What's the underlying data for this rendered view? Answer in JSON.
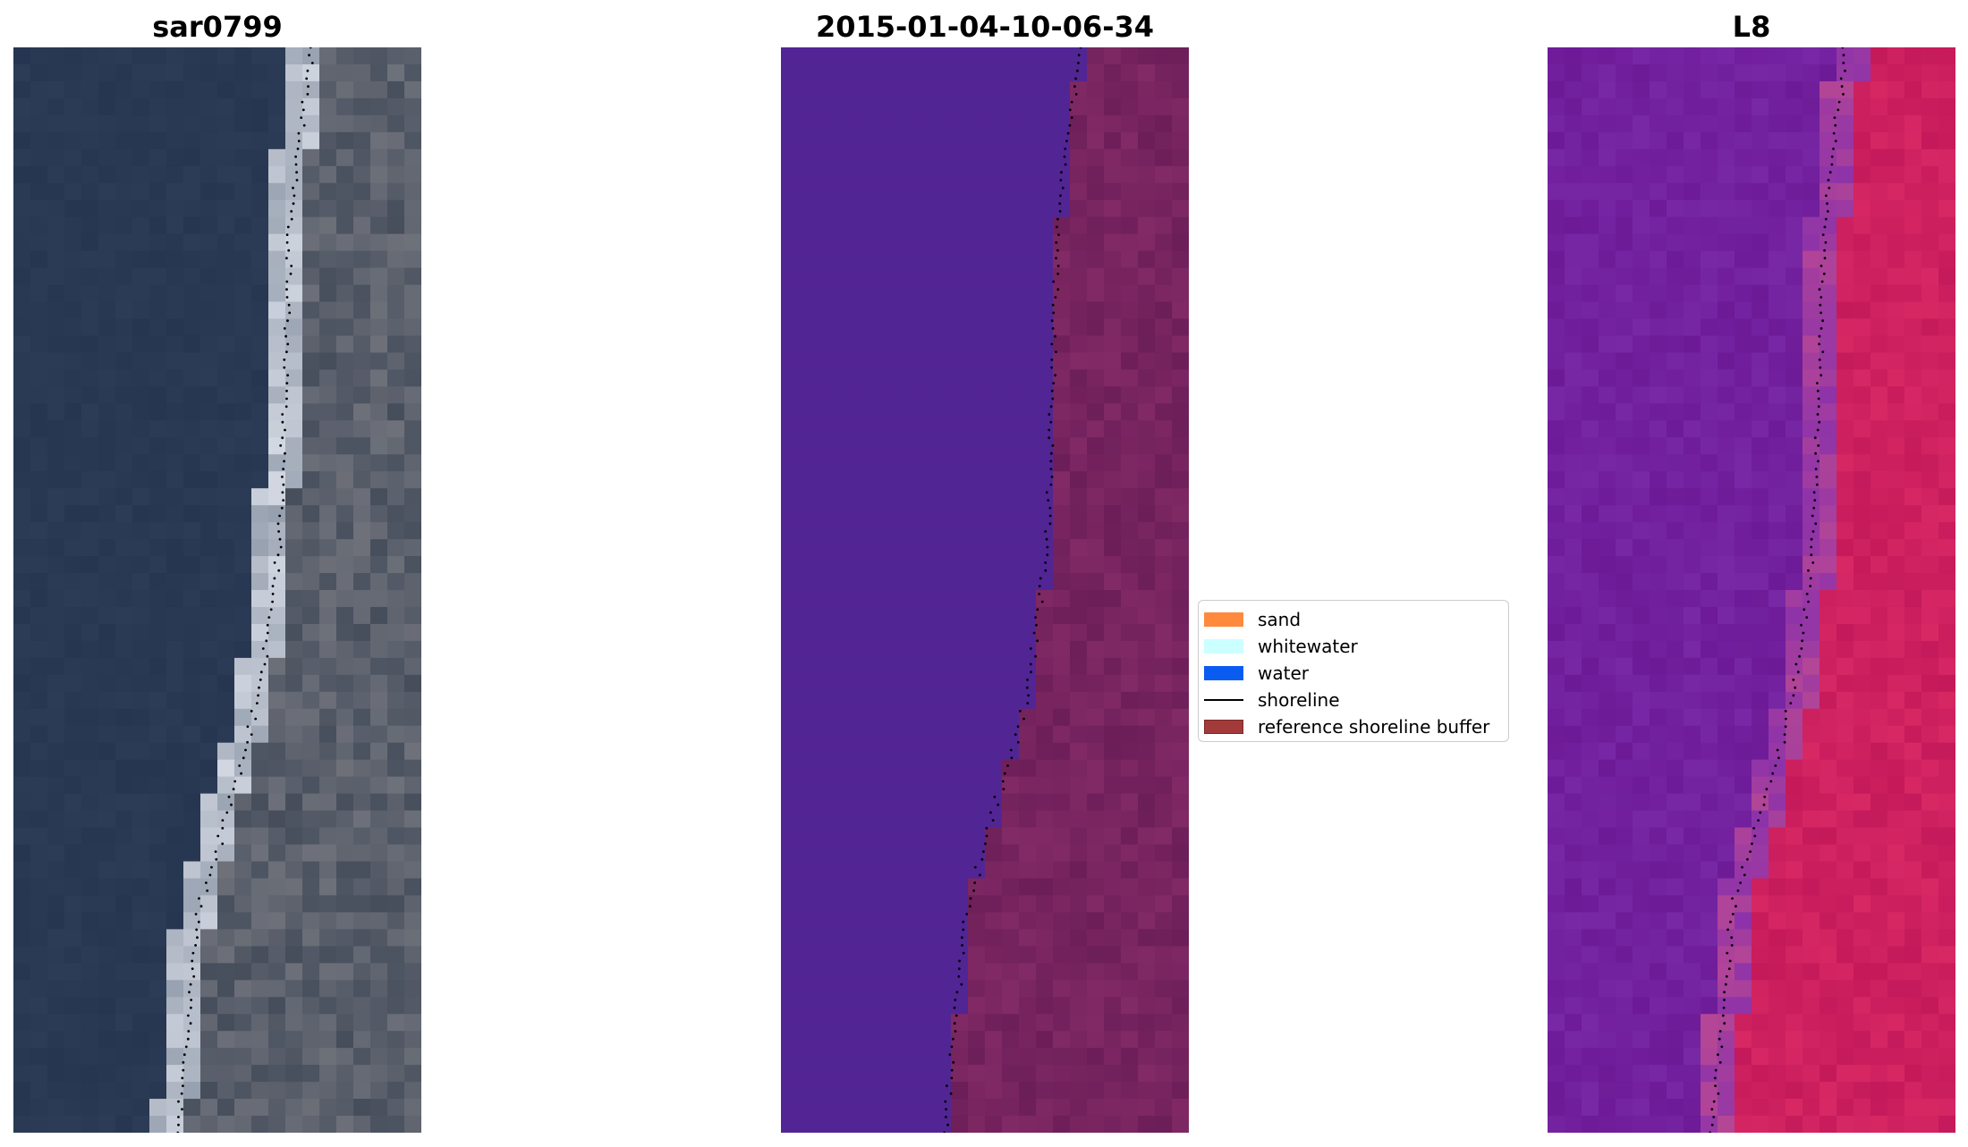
{
  "panels": [
    {
      "title": "sar0799",
      "kind": "rgb"
    },
    {
      "title": "2015-01-04-10-06-34",
      "kind": "classified"
    },
    {
      "title": "L8",
      "kind": "index"
    }
  ],
  "legend": {
    "items": [
      {
        "label": "sand",
        "type": "patch",
        "color": "#ff8a3d"
      },
      {
        "label": "whitewater",
        "type": "patch",
        "color": "#ccffff"
      },
      {
        "label": "water",
        "type": "patch",
        "color": "#0a5cf0"
      },
      {
        "label": "shoreline",
        "type": "line",
        "color": "#000000"
      },
      {
        "label": "reference shoreline buffer",
        "type": "patch",
        "color": "#a33a3a",
        "edge": "#7a2a2a"
      }
    ]
  },
  "colors": {
    "sea_rgb": "#27364f",
    "land_rgb": "#5a6070",
    "water_class": "#522595",
    "buffer_class": "#6c1e58",
    "index_sea": "#6d1a97",
    "index_land": "#c4195a"
  }
}
